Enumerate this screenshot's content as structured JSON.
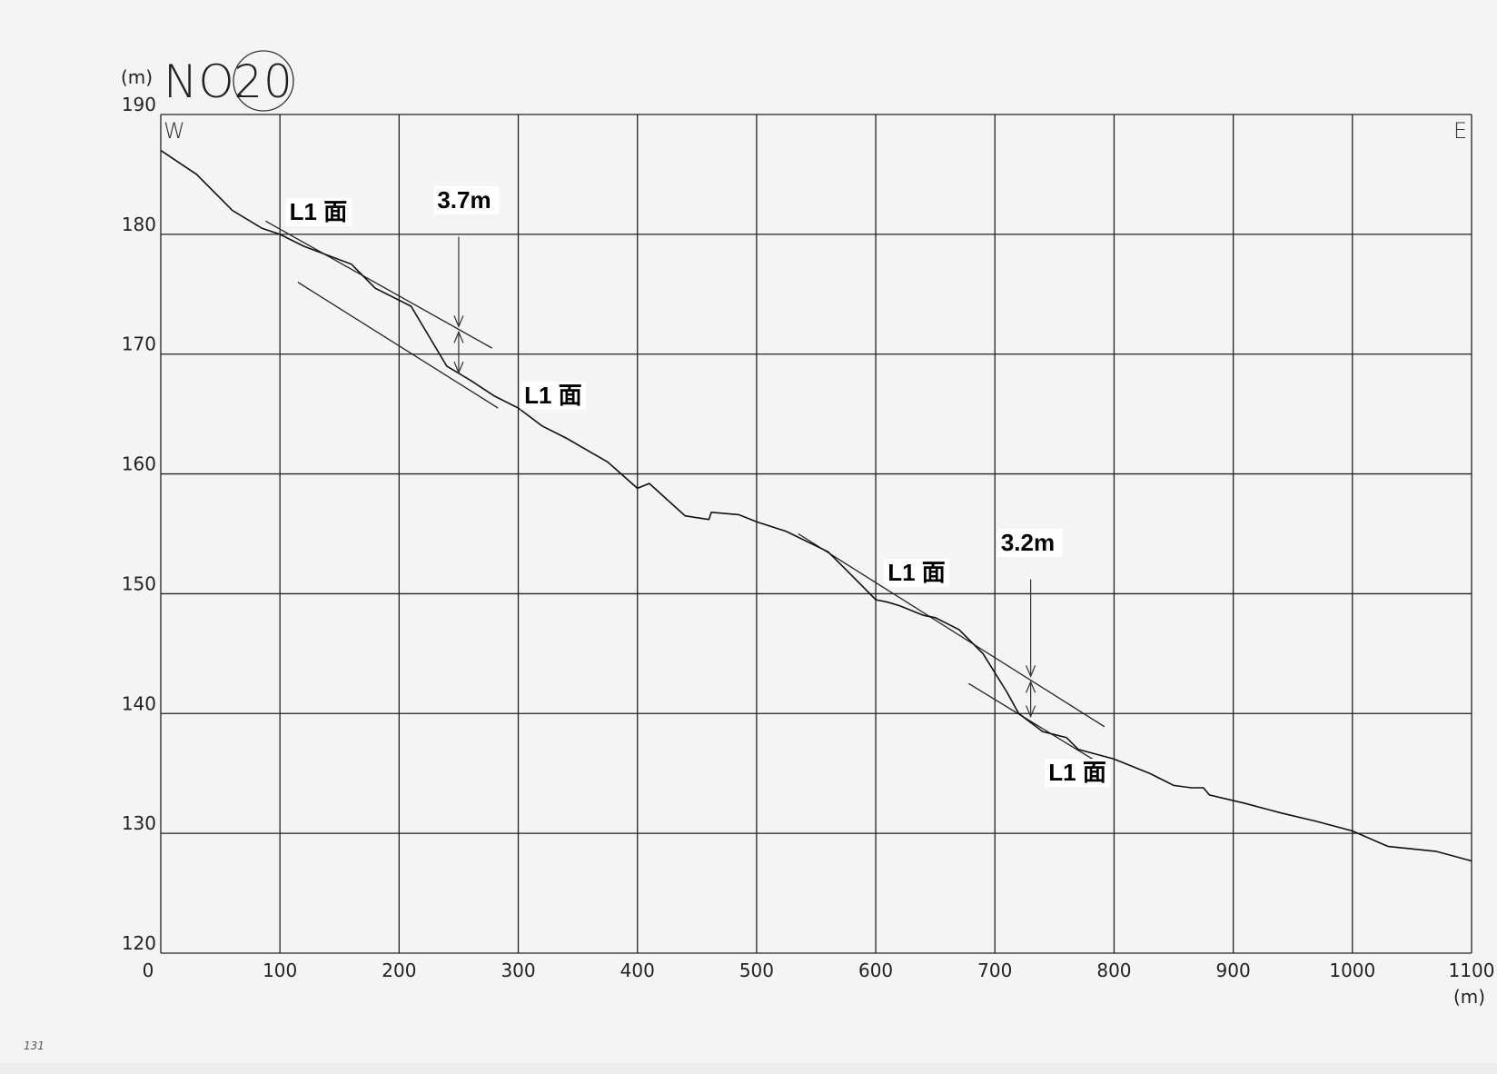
{
  "chart_data": {
    "type": "line",
    "title": "NO.",
    "title_number": "20",
    "ylabel": "(m)",
    "xlabel": "(m)",
    "xlim": [
      0,
      1100
    ],
    "ylim": [
      120,
      190
    ],
    "x_ticks": [
      0,
      100,
      200,
      300,
      400,
      500,
      600,
      700,
      800,
      900,
      1000,
      1100
    ],
    "y_ticks": [
      120,
      130,
      140,
      150,
      160,
      170,
      180,
      190
    ],
    "grid": true,
    "direction_left": "W",
    "direction_right": "E",
    "series": [
      {
        "points": [
          [
            0,
            187
          ],
          [
            30,
            185
          ],
          [
            60,
            182
          ],
          [
            85,
            180.5
          ],
          [
            100,
            180
          ],
          [
            120,
            179
          ],
          [
            160,
            177.5
          ],
          [
            180,
            175.5
          ],
          [
            210,
            174
          ],
          [
            240,
            169
          ],
          [
            260,
            167.8
          ],
          [
            280,
            166.5
          ],
          [
            300,
            165.5
          ],
          [
            320,
            164
          ],
          [
            340,
            163
          ],
          [
            375,
            161
          ],
          [
            400,
            158.8
          ],
          [
            410,
            159.2
          ],
          [
            440,
            156.5
          ],
          [
            460,
            156.2
          ],
          [
            462,
            156.8
          ],
          [
            485,
            156.6
          ],
          [
            500,
            156
          ],
          [
            525,
            155.2
          ],
          [
            560,
            153.5
          ],
          [
            580,
            151.5
          ],
          [
            600,
            149.5
          ],
          [
            610,
            149.3
          ],
          [
            620,
            149
          ],
          [
            640,
            148.2
          ],
          [
            650,
            148
          ],
          [
            670,
            147
          ],
          [
            690,
            145
          ],
          [
            710,
            141.8
          ],
          [
            720,
            140
          ],
          [
            740,
            138.5
          ],
          [
            760,
            138
          ],
          [
            770,
            137
          ],
          [
            800,
            136.2
          ],
          [
            830,
            135
          ],
          [
            850,
            134
          ],
          [
            865,
            133.8
          ],
          [
            875,
            133.8
          ],
          [
            880,
            133.2
          ],
          [
            910,
            132.5
          ],
          [
            940,
            131.7
          ],
          [
            970,
            131
          ],
          [
            1000,
            130.2
          ],
          [
            1030,
            128.9
          ],
          [
            1070,
            128.5
          ],
          [
            1100,
            127.7
          ]
        ]
      }
    ],
    "surface_lines": [
      {
        "from": [
          88,
          181.1
        ],
        "to": [
          278,
          170.5
        ]
      },
      {
        "from": [
          115,
          176
        ],
        "to": [
          283,
          165.5
        ]
      },
      {
        "from": [
          535,
          155
        ],
        "to": [
          792,
          138.9
        ]
      },
      {
        "from": [
          678,
          142.5
        ],
        "to": [
          782,
          136.2
        ]
      }
    ],
    "annotations": [
      {
        "text": "L1 面",
        "x": 108,
        "y": 181.2
      },
      {
        "text": "L1 面",
        "x": 305,
        "y": 165.9
      },
      {
        "text": "L1 面",
        "x": 610,
        "y": 151.1
      },
      {
        "text": "L1 面",
        "x": 745,
        "y": 134.4
      },
      {
        "text": "3.7m",
        "x": 232,
        "y": 182.2
      },
      {
        "text": "3.2m",
        "x": 705,
        "y": 153.6
      }
    ],
    "offsets": [
      {
        "label": "3.7m",
        "x": 250,
        "y_top": 172,
        "y_bottom": 168.3
      },
      {
        "label": "3.2m",
        "x": 730,
        "y_top": 142.8,
        "y_bottom": 139.6
      }
    ]
  },
  "footnote": "131"
}
